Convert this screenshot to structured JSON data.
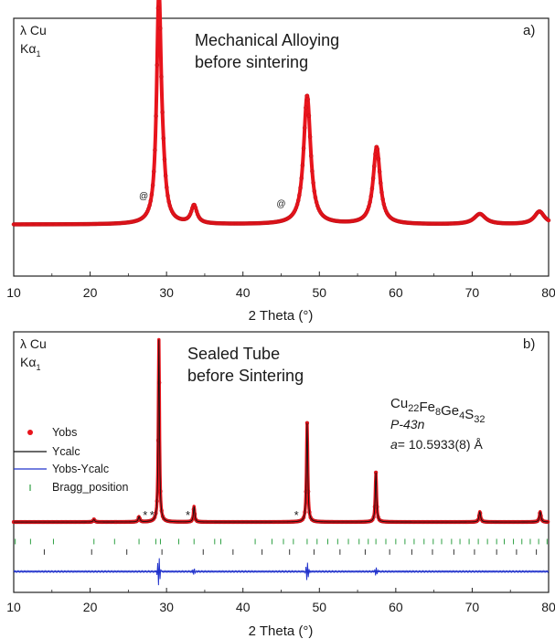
{
  "figure": {
    "common_xlabel": "2 Theta (°)"
  },
  "colors": {
    "observed": "#e8141c",
    "calculated": "#111111",
    "difference": "#2233cc",
    "bragg_phase1": "#2ea043",
    "bragg_phase2": "#333333"
  },
  "chart_data": [
    {
      "type": "scatter",
      "panel_label": "a)",
      "title_line1": "Mechanical Alloying",
      "title_line2": "before sintering",
      "radiation_line1": "λ Cu",
      "radiation_line2_main": "Kα",
      "radiation_line2_sub": "1",
      "xlabel": "2 Theta (°)",
      "ylabel": "",
      "xlim": [
        10,
        80
      ],
      "xticks": [
        "10",
        "20",
        "30",
        "40",
        "50",
        "60",
        "70",
        "80"
      ],
      "y_axis_labels": false,
      "series": [
        {
          "baseline": 0.2,
          "peaks": [
            {
              "x": 29.0,
              "height": 0.86,
              "width": 0.35
            },
            {
              "x": 29.5,
              "height": 0.12,
              "width": 0.45
            },
            {
              "x": 33.6,
              "height": 0.07,
              "width": 0.45
            },
            {
              "x": 48.4,
              "height": 0.5,
              "width": 0.55
            },
            {
              "x": 57.5,
              "height": 0.3,
              "width": 0.55
            },
            {
              "x": 71.0,
              "height": 0.04,
              "width": 0.9
            },
            {
              "x": 78.8,
              "height": 0.05,
              "width": 0.8
            }
          ]
        }
      ],
      "annotations": [
        {
          "text": "@",
          "x": 27.0,
          "y": 0.3
        },
        {
          "text": "@",
          "x": 45.0,
          "y": 0.27
        }
      ]
    },
    {
      "type": "scatter",
      "panel_label": "b)",
      "title_line1": "Sealed Tube",
      "title_line2": "before Sintering",
      "radiation_line1": "λ Cu",
      "radiation_line2_main": "Kα",
      "radiation_line2_sub": "1",
      "formula": {
        "parts": [
          {
            "t": "Cu",
            "sub": "22"
          },
          {
            "t": "Fe",
            "sub": "8"
          },
          {
            "t": "Ge",
            "sub": "4"
          },
          {
            "t": "S",
            "sub": "32"
          }
        ]
      },
      "space_group": "P-43n",
      "lattice_symbol": "a",
      "lattice_value": "= 10.5933(8) Å",
      "legend": {
        "position": "left",
        "items": [
          "Yobs",
          "Ycalc",
          "Yobs-Ycalc",
          "Bragg_position"
        ]
      },
      "xlabel": "2 Theta (°)",
      "ylabel": "",
      "xlim": [
        10,
        80
      ],
      "xticks": [
        "10",
        "20",
        "30",
        "40",
        "50",
        "60",
        "70",
        "80"
      ],
      "y_axis_labels": false,
      "series": [
        {
          "baseline": 0.27,
          "peaks": [
            {
              "x": 20.5,
              "height": 0.01,
              "width": 0.12
            },
            {
              "x": 26.4,
              "height": 0.02,
              "width": 0.12
            },
            {
              "x": 29.0,
              "height": 0.7,
              "width": 0.09
            },
            {
              "x": 33.6,
              "height": 0.06,
              "width": 0.1
            },
            {
              "x": 48.4,
              "height": 0.38,
              "width": 0.1
            },
            {
              "x": 57.4,
              "height": 0.19,
              "width": 0.1
            },
            {
              "x": 71.0,
              "height": 0.04,
              "width": 0.12
            },
            {
              "x": 78.9,
              "height": 0.04,
              "width": 0.12
            }
          ]
        }
      ],
      "star_annotations": [
        {
          "text": "*",
          "x": 27.2
        },
        {
          "text": "*",
          "x": 28.1
        },
        {
          "text": "*",
          "x": 32.8
        },
        {
          "text": "*",
          "x": 47.0
        }
      ],
      "bragg_rows": [
        {
          "level": 0.195,
          "x": [
            10.2,
            12.2,
            15.2,
            20.5,
            23.2,
            26.4,
            28.6,
            29.2,
            31.6,
            33.6,
            36.3,
            37.1,
            41.6,
            43.8,
            45.3,
            46.6,
            48.4,
            49.7,
            51.1,
            52.4,
            53.8,
            55.2,
            56.4,
            57.4,
            58.7,
            60.0,
            61.2,
            62.4,
            63.7,
            64.9,
            66.0,
            67.3,
            68.4,
            69.6,
            70.8,
            72.0,
            73.2,
            74.2,
            75.4,
            76.5,
            77.6,
            78.7,
            79.8
          ]
        },
        {
          "level": 0.155,
          "x": [
            14.0,
            20.2,
            24.8,
            29.4,
            34.8,
            38.7,
            42.5,
            46.1,
            49.3,
            52.7,
            56.0,
            59.2,
            62.1,
            64.8,
            67.6,
            70.3,
            73.2,
            75.8,
            78.4
          ]
        }
      ],
      "difference": {
        "level": 0.08,
        "spikes": [
          {
            "x": 29.0,
            "amp": 0.055
          },
          {
            "x": 33.6,
            "amp": 0.014
          },
          {
            "x": 48.4,
            "amp": 0.035
          },
          {
            "x": 57.4,
            "amp": 0.014
          }
        ]
      }
    }
  ]
}
